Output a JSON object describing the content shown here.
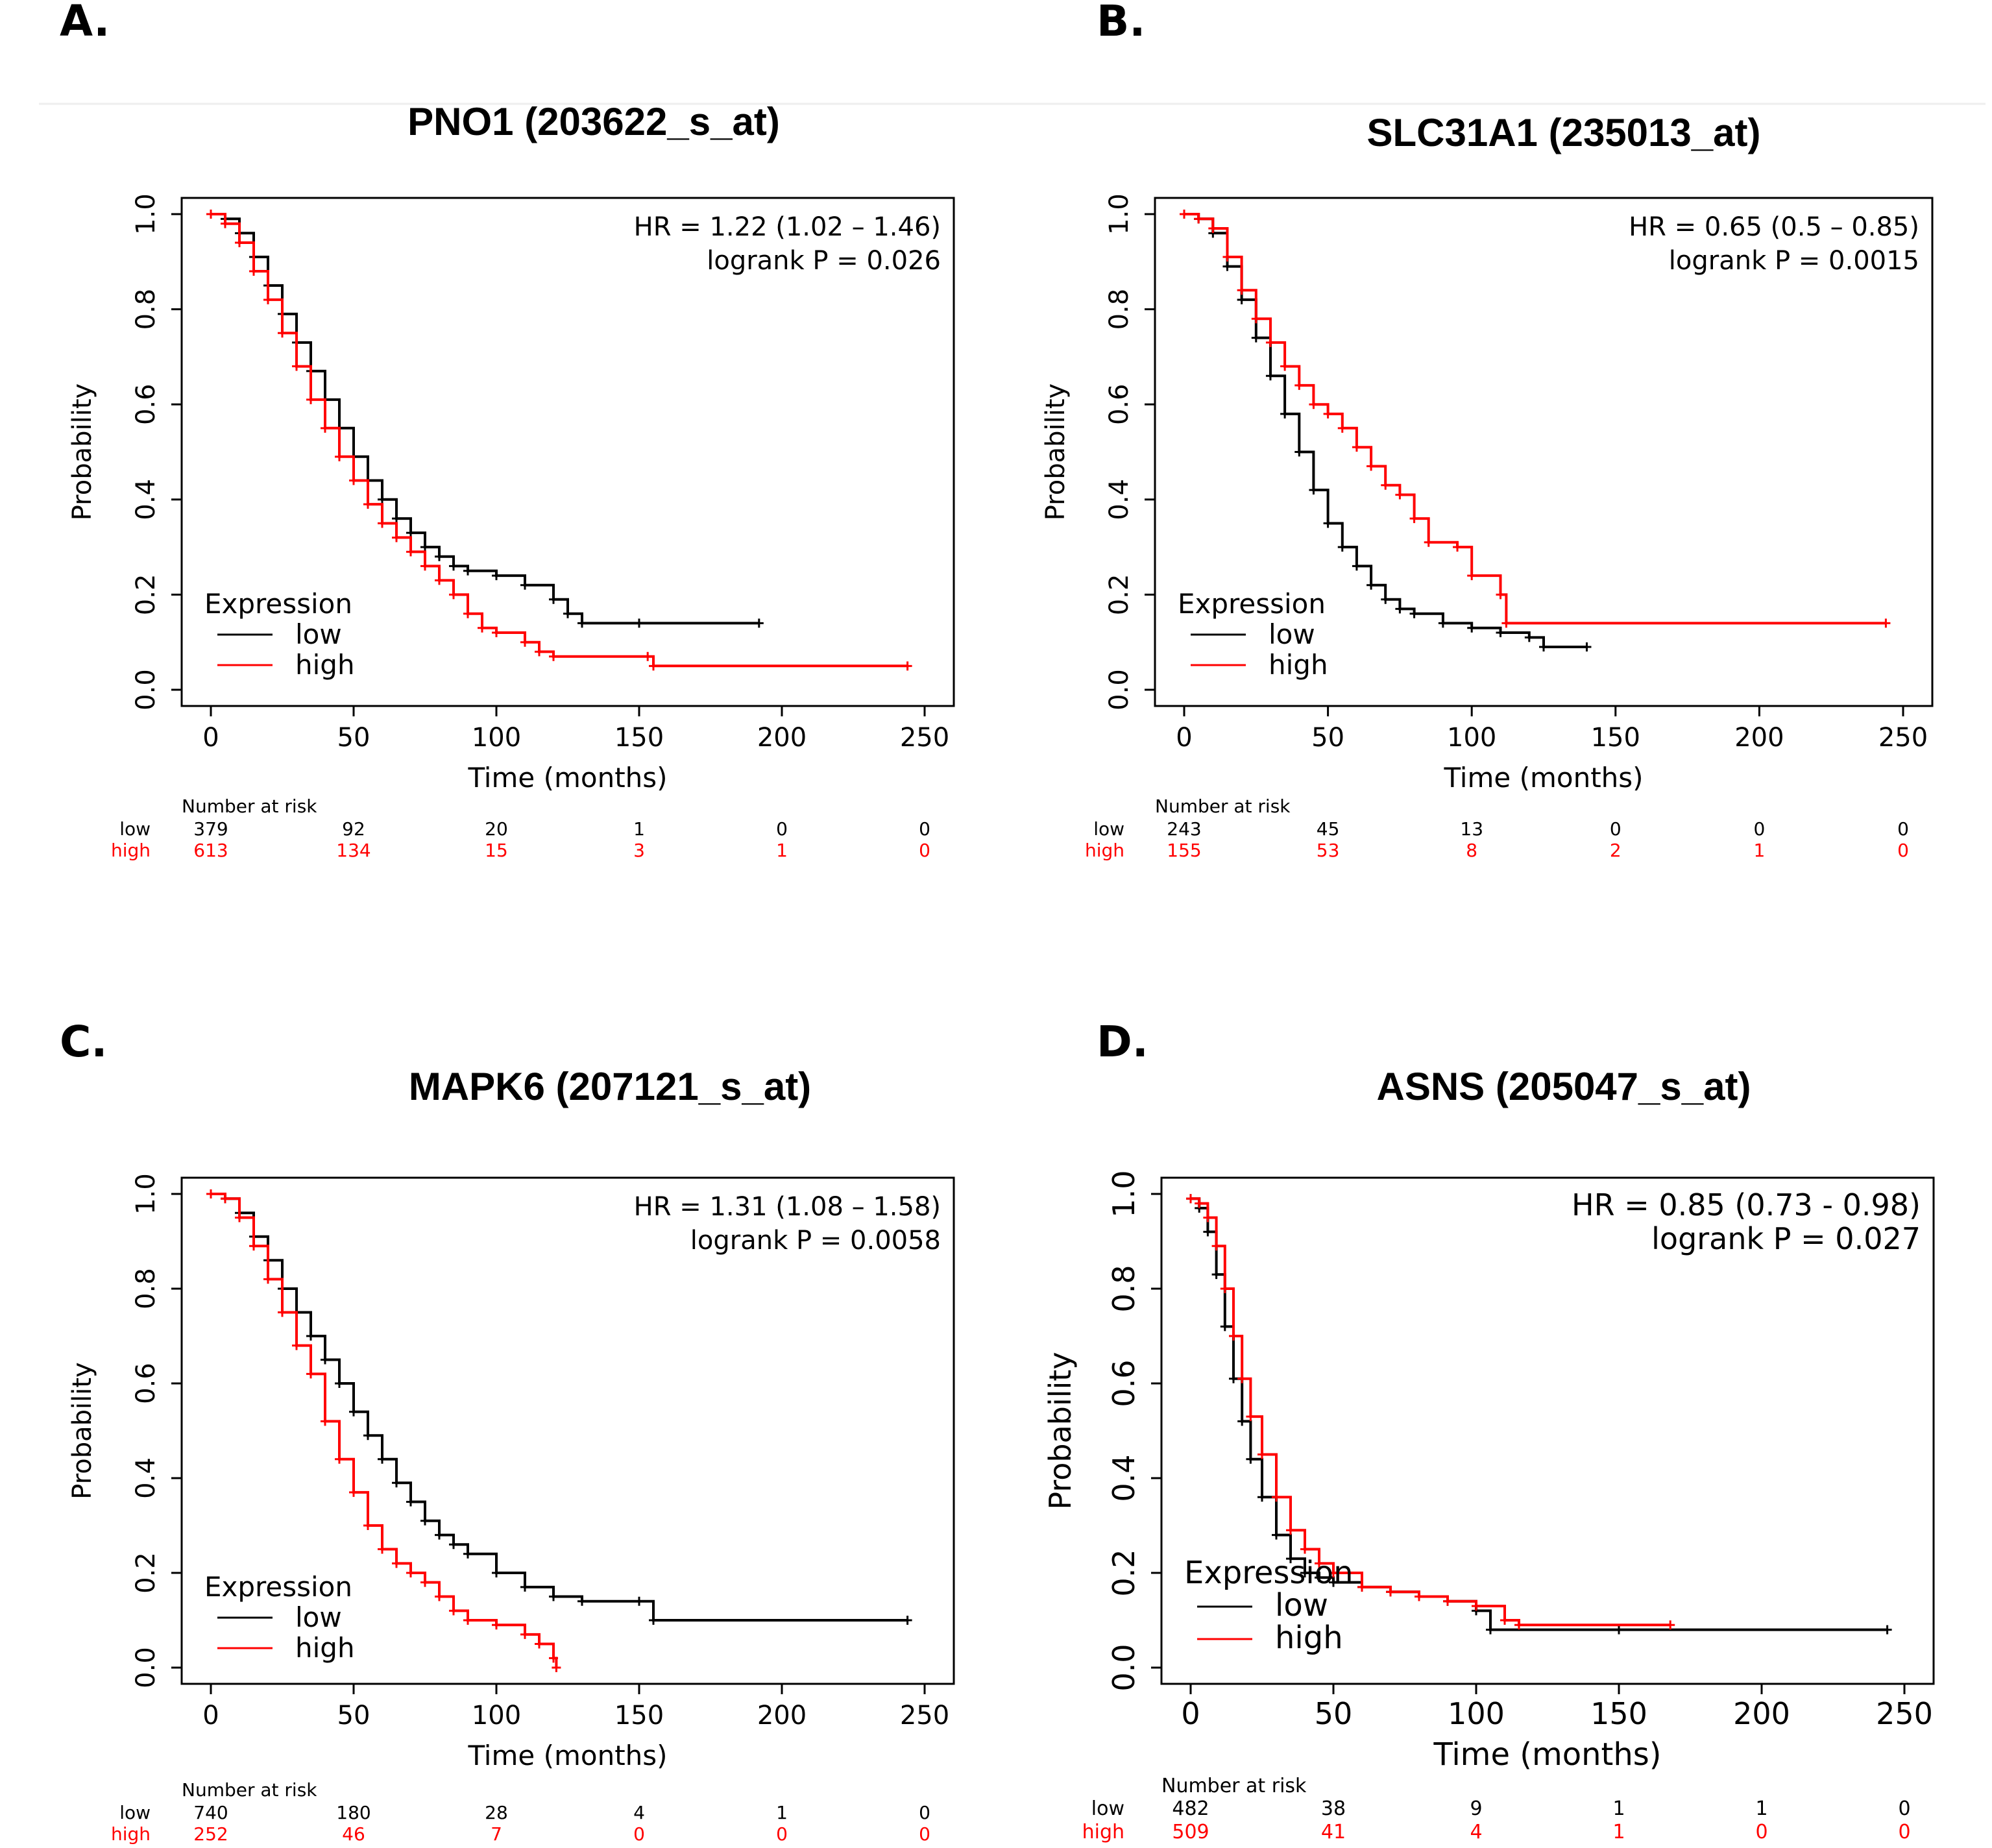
{
  "figure": {
    "colors": {
      "low": "#000000",
      "high": "#ff0000",
      "axis": "#000000"
    }
  },
  "chart_data": [
    {
      "panel_label": "A.",
      "type": "line",
      "title": "PNO1 (203622_s_at)",
      "xlabel": "Time (months)",
      "ylabel": "Probability",
      "xlim": [
        0,
        250
      ],
      "ylim": [
        0,
        1
      ],
      "x_ticks": [
        "0",
        "50",
        "100",
        "150",
        "200",
        "250"
      ],
      "y_ticks": [
        "0.0",
        "0.2",
        "0.4",
        "0.6",
        "0.8",
        "1.0"
      ],
      "annotation": [
        "HR = 1.22 (1.02 – 1.46)",
        "logrank P = 0.026"
      ],
      "legend": {
        "title": "Expression",
        "entries": [
          "low",
          "high"
        ],
        "location": "bottom-left"
      },
      "series": [
        {
          "name": "low",
          "color": "#000000",
          "points": [
            [
              0,
              1.0
            ],
            [
              5,
              0.99
            ],
            [
              10,
              0.96
            ],
            [
              15,
              0.91
            ],
            [
              20,
              0.85
            ],
            [
              25,
              0.79
            ],
            [
              30,
              0.73
            ],
            [
              35,
              0.67
            ],
            [
              40,
              0.61
            ],
            [
              45,
              0.55
            ],
            [
              50,
              0.49
            ],
            [
              55,
              0.44
            ],
            [
              60,
              0.4
            ],
            [
              65,
              0.36
            ],
            [
              70,
              0.33
            ],
            [
              75,
              0.3
            ],
            [
              80,
              0.28
            ],
            [
              85,
              0.26
            ],
            [
              90,
              0.25
            ],
            [
              100,
              0.24
            ],
            [
              110,
              0.22
            ],
            [
              120,
              0.19
            ],
            [
              125,
              0.16
            ],
            [
              130,
              0.14
            ],
            [
              150,
              0.14
            ],
            [
              192,
              0.14
            ]
          ]
        },
        {
          "name": "high",
          "color": "#ff0000",
          "points": [
            [
              0,
              1.0
            ],
            [
              5,
              0.98
            ],
            [
              10,
              0.94
            ],
            [
              15,
              0.88
            ],
            [
              20,
              0.82
            ],
            [
              25,
              0.75
            ],
            [
              30,
              0.68
            ],
            [
              35,
              0.61
            ],
            [
              40,
              0.55
            ],
            [
              45,
              0.49
            ],
            [
              50,
              0.44
            ],
            [
              55,
              0.39
            ],
            [
              60,
              0.35
            ],
            [
              65,
              0.32
            ],
            [
              70,
              0.29
            ],
            [
              75,
              0.26
            ],
            [
              80,
              0.23
            ],
            [
              85,
              0.2
            ],
            [
              90,
              0.16
            ],
            [
              95,
              0.13
            ],
            [
              100,
              0.12
            ],
            [
              110,
              0.1
            ],
            [
              115,
              0.08
            ],
            [
              120,
              0.07
            ],
            [
              153,
              0.07
            ],
            [
              155,
              0.05
            ],
            [
              244,
              0.05
            ]
          ]
        }
      ],
      "risk_table": {
        "header": "Number at risk",
        "rows": [
          {
            "label": "low",
            "color": "#000000",
            "values": [
              "379",
              "92",
              "20",
              "1",
              "0",
              "0"
            ]
          },
          {
            "label": "high",
            "color": "#ff0000",
            "values": [
              "613",
              "134",
              "15",
              "3",
              "1",
              "0"
            ]
          }
        ]
      }
    },
    {
      "panel_label": "B.",
      "type": "line",
      "title": "SLC31A1 (235013_at)",
      "xlabel": "Time (months)",
      "ylabel": "Probability",
      "xlim": [
        0,
        250
      ],
      "ylim": [
        0,
        1
      ],
      "x_ticks": [
        "0",
        "50",
        "100",
        "150",
        "200",
        "250"
      ],
      "y_ticks": [
        "0.0",
        "0.2",
        "0.4",
        "0.6",
        "0.8",
        "1.0"
      ],
      "annotation": [
        "HR = 0.65 (0.5 – 0.85)",
        "logrank P = 0.0015"
      ],
      "legend": {
        "title": "Expression",
        "entries": [
          "low",
          "high"
        ],
        "location": "bottom-left"
      },
      "series": [
        {
          "name": "low",
          "color": "#000000",
          "points": [
            [
              0,
              1.0
            ],
            [
              5,
              0.99
            ],
            [
              10,
              0.96
            ],
            [
              15,
              0.89
            ],
            [
              20,
              0.82
            ],
            [
              25,
              0.74
            ],
            [
              30,
              0.66
            ],
            [
              35,
              0.58
            ],
            [
              40,
              0.5
            ],
            [
              45,
              0.42
            ],
            [
              50,
              0.35
            ],
            [
              55,
              0.3
            ],
            [
              60,
              0.26
            ],
            [
              65,
              0.22
            ],
            [
              70,
              0.19
            ],
            [
              75,
              0.17
            ],
            [
              80,
              0.16
            ],
            [
              90,
              0.14
            ],
            [
              100,
              0.13
            ],
            [
              110,
              0.12
            ],
            [
              120,
              0.11
            ],
            [
              125,
              0.09
            ],
            [
              140,
              0.09
            ]
          ]
        },
        {
          "name": "high",
          "color": "#ff0000",
          "points": [
            [
              0,
              1.0
            ],
            [
              5,
              0.99
            ],
            [
              10,
              0.97
            ],
            [
              15,
              0.91
            ],
            [
              20,
              0.84
            ],
            [
              25,
              0.78
            ],
            [
              30,
              0.73
            ],
            [
              35,
              0.68
            ],
            [
              40,
              0.64
            ],
            [
              45,
              0.6
            ],
            [
              50,
              0.58
            ],
            [
              55,
              0.55
            ],
            [
              60,
              0.51
            ],
            [
              65,
              0.47
            ],
            [
              70,
              0.43
            ],
            [
              75,
              0.41
            ],
            [
              80,
              0.36
            ],
            [
              85,
              0.31
            ],
            [
              95,
              0.3
            ],
            [
              100,
              0.24
            ],
            [
              110,
              0.2
            ],
            [
              112,
              0.14
            ],
            [
              244,
              0.14
            ]
          ]
        }
      ],
      "risk_table": {
        "header": "Number at risk",
        "rows": [
          {
            "label": "low",
            "color": "#000000",
            "values": [
              "243",
              "45",
              "13",
              "0",
              "0",
              "0"
            ]
          },
          {
            "label": "high",
            "color": "#ff0000",
            "values": [
              "155",
              "53",
              "8",
              "2",
              "1",
              "0"
            ]
          }
        ]
      }
    },
    {
      "panel_label": "C.",
      "type": "line",
      "title": "MAPK6 (207121_s_at)",
      "xlabel": "Time (months)",
      "ylabel": "Probability",
      "xlim": [
        0,
        250
      ],
      "ylim": [
        0,
        1
      ],
      "x_ticks": [
        "0",
        "50",
        "100",
        "150",
        "200",
        "250"
      ],
      "y_ticks": [
        "0.0",
        "0.2",
        "0.4",
        "0.6",
        "0.8",
        "1.0"
      ],
      "annotation": [
        "HR = 1.31 (1.08 – 1.58)",
        "logrank P = 0.0058"
      ],
      "legend": {
        "title": "Expression",
        "entries": [
          "low",
          "high"
        ],
        "location": "bottom-left"
      },
      "series": [
        {
          "name": "low",
          "color": "#000000",
          "points": [
            [
              0,
              1.0
            ],
            [
              5,
              0.99
            ],
            [
              10,
              0.96
            ],
            [
              15,
              0.91
            ],
            [
              20,
              0.86
            ],
            [
              25,
              0.8
            ],
            [
              30,
              0.75
            ],
            [
              35,
              0.7
            ],
            [
              40,
              0.65
            ],
            [
              45,
              0.6
            ],
            [
              50,
              0.54
            ],
            [
              55,
              0.49
            ],
            [
              60,
              0.44
            ],
            [
              65,
              0.39
            ],
            [
              70,
              0.35
            ],
            [
              75,
              0.31
            ],
            [
              80,
              0.28
            ],
            [
              85,
              0.26
            ],
            [
              90,
              0.24
            ],
            [
              100,
              0.2
            ],
            [
              110,
              0.17
            ],
            [
              120,
              0.15
            ],
            [
              130,
              0.14
            ],
            [
              150,
              0.14
            ],
            [
              155,
              0.1
            ],
            [
              244,
              0.1
            ]
          ]
        },
        {
          "name": "high",
          "color": "#ff0000",
          "points": [
            [
              0,
              1.0
            ],
            [
              5,
              0.99
            ],
            [
              10,
              0.95
            ],
            [
              15,
              0.89
            ],
            [
              20,
              0.82
            ],
            [
              25,
              0.75
            ],
            [
              30,
              0.68
            ],
            [
              35,
              0.62
            ],
            [
              40,
              0.52
            ],
            [
              45,
              0.44
            ],
            [
              50,
              0.37
            ],
            [
              55,
              0.3
            ],
            [
              60,
              0.25
            ],
            [
              65,
              0.22
            ],
            [
              70,
              0.2
            ],
            [
              75,
              0.18
            ],
            [
              80,
              0.15
            ],
            [
              85,
              0.12
            ],
            [
              90,
              0.1
            ],
            [
              100,
              0.09
            ],
            [
              110,
              0.07
            ],
            [
              115,
              0.05
            ],
            [
              120,
              0.02
            ],
            [
              121,
              0.0
            ]
          ]
        }
      ],
      "risk_table": {
        "header": "Number at risk",
        "rows": [
          {
            "label": "low",
            "color": "#000000",
            "values": [
              "740",
              "180",
              "28",
              "4",
              "1",
              "0"
            ]
          },
          {
            "label": "high",
            "color": "#ff0000",
            "values": [
              "252",
              "46",
              "7",
              "0",
              "0",
              "0"
            ]
          }
        ]
      }
    },
    {
      "panel_label": "D.",
      "type": "line",
      "title": "ASNS (205047_s_at)",
      "xlabel": "Time (months)",
      "ylabel": "Probability",
      "xlim": [
        0,
        250
      ],
      "ylim": [
        0,
        1
      ],
      "x_ticks": [
        "0",
        "50",
        "100",
        "150",
        "200",
        "250"
      ],
      "y_ticks": [
        "0.0",
        "0.2",
        "0.4",
        "0.6",
        "0.8",
        "1.0"
      ],
      "annotation": [
        "HR = 0.85 (0.73 - 0.98)",
        "logrank P = 0.027"
      ],
      "legend": {
        "title": "Expression",
        "entries": [
          "low",
          "high"
        ],
        "location": "bottom-left"
      },
      "series": [
        {
          "name": "low",
          "color": "#000000",
          "points": [
            [
              0,
              0.99
            ],
            [
              3,
              0.97
            ],
            [
              6,
              0.92
            ],
            [
              9,
              0.83
            ],
            [
              12,
              0.72
            ],
            [
              15,
              0.61
            ],
            [
              18,
              0.52
            ],
            [
              21,
              0.44
            ],
            [
              25,
              0.36
            ],
            [
              30,
              0.28
            ],
            [
              35,
              0.23
            ],
            [
              40,
              0.2
            ],
            [
              45,
              0.19
            ],
            [
              50,
              0.18
            ],
            [
              60,
              0.17
            ],
            [
              70,
              0.16
            ],
            [
              80,
              0.15
            ],
            [
              90,
              0.14
            ],
            [
              100,
              0.12
            ],
            [
              105,
              0.08
            ],
            [
              150,
              0.08
            ],
            [
              244,
              0.08
            ]
          ]
        },
        {
          "name": "high",
          "color": "#ff0000",
          "points": [
            [
              0,
              0.99
            ],
            [
              3,
              0.98
            ],
            [
              6,
              0.95
            ],
            [
              9,
              0.89
            ],
            [
              12,
              0.8
            ],
            [
              15,
              0.7
            ],
            [
              18,
              0.61
            ],
            [
              21,
              0.53
            ],
            [
              25,
              0.45
            ],
            [
              30,
              0.36
            ],
            [
              35,
              0.29
            ],
            [
              40,
              0.25
            ],
            [
              45,
              0.22
            ],
            [
              50,
              0.2
            ],
            [
              60,
              0.17
            ],
            [
              70,
              0.16
            ],
            [
              80,
              0.15
            ],
            [
              90,
              0.14
            ],
            [
              100,
              0.13
            ],
            [
              110,
              0.1
            ],
            [
              115,
              0.09
            ],
            [
              168,
              0.09
            ]
          ]
        }
      ],
      "risk_table": {
        "header": "Number at risk",
        "rows": [
          {
            "label": "low",
            "color": "#000000",
            "values": [
              "482",
              "38",
              "9",
              "1",
              "1",
              "0"
            ]
          },
          {
            "label": "high",
            "color": "#ff0000",
            "values": [
              "509",
              "41",
              "4",
              "1",
              "0",
              "0"
            ]
          }
        ]
      }
    }
  ]
}
